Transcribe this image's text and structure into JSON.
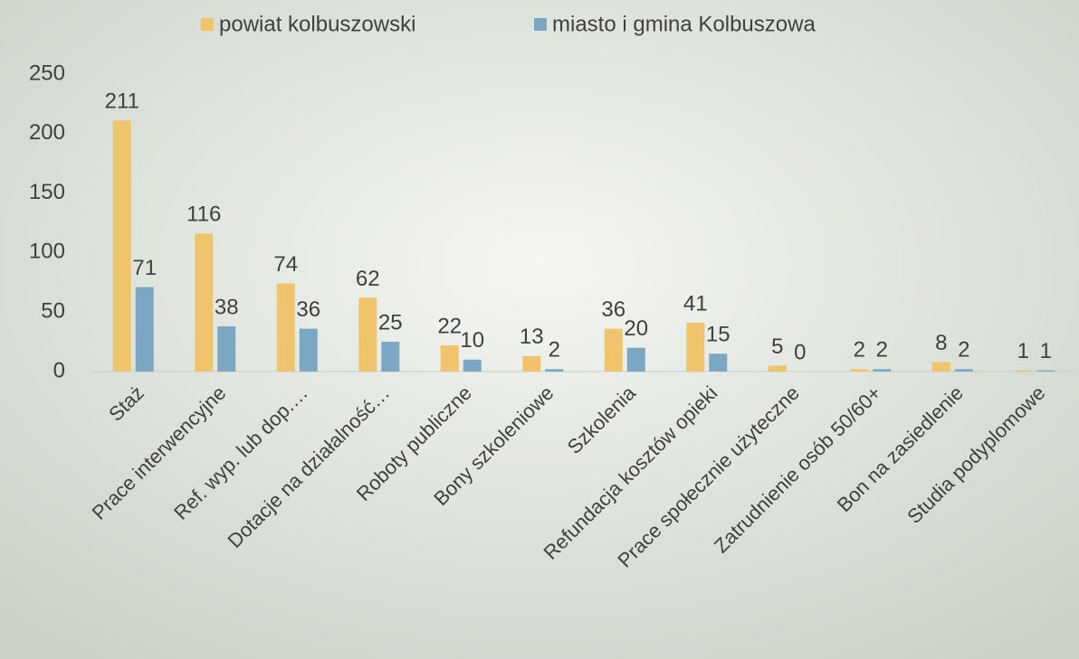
{
  "chart_data": {
    "type": "bar",
    "categories": [
      "Staż",
      "Prace interwencyjne",
      "Ref. wyp. lub dop.…",
      "Dotacje na działalność…",
      "Roboty publiczne",
      "Bony szkoleniowe",
      "Szkolenia",
      "Refundacja kosztów opieki",
      "Prace społecznie użyteczne",
      "Zatrudnienie osób 50/60+",
      "Bon na zasiedlenie",
      "Studia podyplomowe"
    ],
    "series": [
      {
        "name": "powiat kolbuszowski",
        "color": "#efc46c",
        "values": [
          211,
          116,
          74,
          62,
          22,
          13,
          36,
          41,
          5,
          2,
          8,
          1
        ]
      },
      {
        "name": "miasto i gmina Kolbuszowa",
        "color": "#7ba7c3",
        "values": [
          71,
          38,
          36,
          25,
          10,
          2,
          20,
          15,
          0,
          2,
          2,
          1
        ]
      }
    ],
    "ylim": [
      0,
      250
    ],
    "yticks": [
      0,
      50,
      100,
      150,
      200,
      250
    ],
    "grid": false,
    "legend": "top"
  }
}
